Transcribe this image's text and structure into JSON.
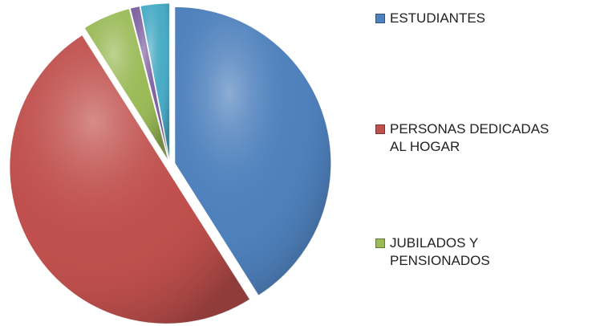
{
  "chart_data": {
    "type": "pie",
    "categories": [
      "ESTUDIANTES",
      "PERSONAS DEDICADAS AL HOGAR",
      "JUBILADOS Y PENSIONADOS",
      null,
      null
    ],
    "values": [
      41,
      50,
      5,
      1,
      3
    ],
    "colors": [
      "#4f81bd",
      "#c0504d",
      "#9bbb59",
      "#8064a2",
      "#4bacc6"
    ],
    "legend": "right"
  }
}
